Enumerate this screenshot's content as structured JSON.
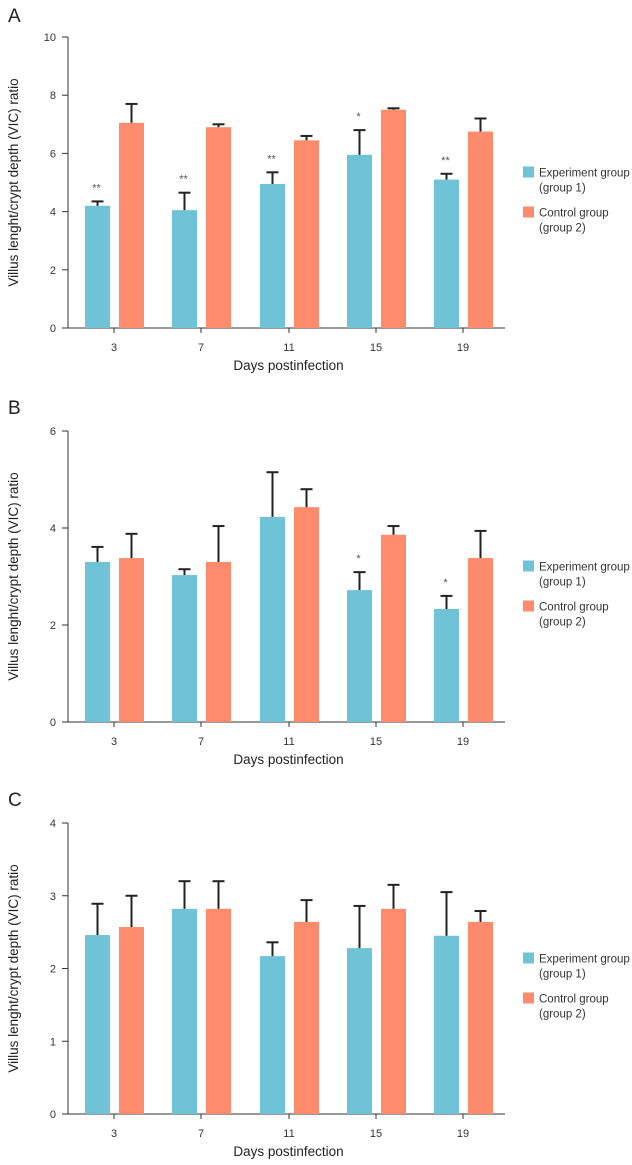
{
  "colors": {
    "experiment": "#6fc3d6",
    "control": "#fe8c6c",
    "axis": "#333333",
    "error": "#222222"
  },
  "chart_data": [
    {
      "type": "bar",
      "panel": "A",
      "title": "",
      "xlabel": "Days postinfection",
      "ylabel": "Villus lenght/crypt depth (VIC) ratio",
      "ylim": [
        0,
        10
      ],
      "yticks": [
        0,
        2,
        4,
        6,
        8,
        10
      ],
      "categories": [
        "3",
        "7",
        "11",
        "15",
        "19"
      ],
      "series": [
        {
          "name": "Experiment group (group 1)",
          "legend_lines": [
            "Experiment group",
            "(group 1)"
          ],
          "values": [
            4.2,
            4.05,
            4.95,
            5.95,
            5.1
          ],
          "error": [
            0.15,
            0.6,
            0.4,
            0.85,
            0.2
          ],
          "annotations": [
            "**",
            "**",
            "**",
            "*",
            "**"
          ]
        },
        {
          "name": "Control group (group 2)",
          "legend_lines": [
            "Control group",
            "(group 2)"
          ],
          "values": [
            7.05,
            6.9,
            6.45,
            7.5,
            6.75
          ],
          "error": [
            0.65,
            0.1,
            0.15,
            0.05,
            0.45
          ],
          "annotations": [
            "",
            "",
            "",
            "",
            ""
          ]
        }
      ],
      "legend": "right"
    },
    {
      "type": "bar",
      "panel": "B",
      "title": "",
      "xlabel": "Days postinfection",
      "ylabel": "Villus lenght/crypt depth (VIC) ratio",
      "ylim": [
        0,
        6
      ],
      "yticks": [
        0,
        2,
        4,
        6
      ],
      "categories": [
        "3",
        "7",
        "11",
        "15",
        "19"
      ],
      "series": [
        {
          "name": "Experiment group (group 1)",
          "legend_lines": [
            "Experiment group",
            "(group 1)"
          ],
          "values": [
            3.3,
            3.03,
            4.23,
            2.72,
            2.33
          ],
          "error": [
            0.31,
            0.12,
            0.92,
            0.37,
            0.27
          ],
          "annotations": [
            "",
            "",
            "",
            "*",
            "*"
          ]
        },
        {
          "name": "Control group (group 2)",
          "legend_lines": [
            "Control group",
            "(group 2)"
          ],
          "values": [
            3.38,
            3.3,
            4.43,
            3.86,
            3.38
          ],
          "error": [
            0.5,
            0.74,
            0.37,
            0.18,
            0.56
          ],
          "annotations": [
            "",
            "",
            "",
            "",
            ""
          ]
        }
      ],
      "legend": "right"
    },
    {
      "type": "bar",
      "panel": "C",
      "title": "",
      "xlabel": "Days postinfection",
      "ylabel": "Villus lenght/crypt depth (VIC) ratio",
      "ylim": [
        0,
        4
      ],
      "yticks": [
        0,
        1,
        2,
        3,
        4
      ],
      "categories": [
        "3",
        "7",
        "11",
        "15",
        "19"
      ],
      "series": [
        {
          "name": "Experiment group (group 1)",
          "legend_lines": [
            "Experiment group",
            "(group 1)"
          ],
          "values": [
            2.46,
            2.82,
            2.17,
            2.28,
            2.45
          ],
          "error": [
            0.43,
            0.38,
            0.19,
            0.58,
            0.6
          ],
          "annotations": [
            "",
            "",
            "",
            "",
            ""
          ]
        },
        {
          "name": "Control group (group 2)",
          "legend_lines": [
            "Control group",
            "(group 2)"
          ],
          "values": [
            2.57,
            2.82,
            2.64,
            2.82,
            2.64
          ],
          "error": [
            0.43,
            0.38,
            0.3,
            0.33,
            0.15
          ],
          "annotations": [
            "",
            "",
            "",
            "",
            ""
          ]
        }
      ],
      "legend": "right"
    }
  ]
}
